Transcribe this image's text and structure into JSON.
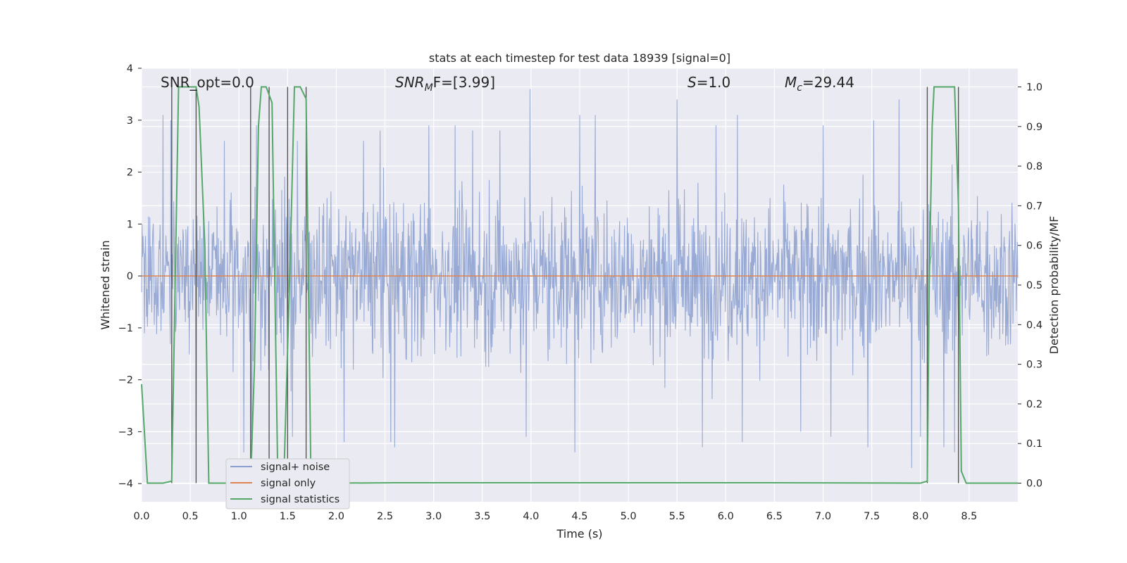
{
  "chart_data": {
    "type": "line",
    "title": "stats at each timestep for test data 18939 [signal=0]",
    "xlabel": "Time (s)",
    "ylabel": "Whitened strain",
    "ylabel_right": "Detection probability/MF",
    "xlim": [
      0.0,
      9.0
    ],
    "ylim": [
      -4.35,
      4.0
    ],
    "ylim_right": [
      -0.047,
      1.047
    ],
    "x_ticks": [
      "0.0",
      "0.5",
      "1.0",
      "1.5",
      "2.0",
      "2.5",
      "3.0",
      "3.5",
      "4.0",
      "4.5",
      "5.0",
      "5.5",
      "6.0",
      "6.5",
      "7.0",
      "7.5",
      "8.0",
      "8.5"
    ],
    "y_ticks": [
      "4",
      "3",
      "2",
      "1",
      "0",
      "−1",
      "−2",
      "−3",
      "−4"
    ],
    "y_ticks_right": [
      "1.0",
      "0.9",
      "0.8",
      "0.7",
      "0.6",
      "0.5",
      "0.4",
      "0.3",
      "0.2",
      "0.1",
      "0.0"
    ],
    "grid": true,
    "legend_position": "lower-left",
    "annotations": {
      "snr_opt": "SNR_opt=0.0",
      "snr_mf_prefix": "SNR",
      "snr_mf_sub": "M",
      "snr_mf_suffix": "F=[3.99]",
      "s_var": "S",
      "s_value": "=1.0",
      "mc_var": "M",
      "mc_sub": "c",
      "mc_value": "=29.44"
    },
    "series": [
      {
        "name": "signal+ noise",
        "color": "#8a9fcf",
        "description_range": [
          -3.6,
          3.6
        ],
        "peaks": [
          [
            0.22,
            3.1
          ],
          [
            0.3,
            3.0
          ],
          [
            0.85,
            2.6
          ],
          [
            1.18,
            2.9
          ],
          [
            1.6,
            2.6
          ],
          [
            2.28,
            2.6
          ],
          [
            2.45,
            2.8
          ],
          [
            2.95,
            2.9
          ],
          [
            3.22,
            2.9
          ],
          [
            3.4,
            2.8
          ],
          [
            3.68,
            2.8
          ],
          [
            3.99,
            3.6
          ],
          [
            4.5,
            3.1
          ],
          [
            4.66,
            3.1
          ],
          [
            5.5,
            3.4
          ],
          [
            5.9,
            2.9
          ],
          [
            6.12,
            3.1
          ],
          [
            7.0,
            2.9
          ],
          [
            7.52,
            3.0
          ],
          [
            7.78,
            3.4
          ],
          [
            8.0,
            3.0
          ]
        ],
        "troughs": [
          [
            0.56,
            -3.3
          ],
          [
            1.05,
            -3.4
          ],
          [
            1.13,
            -3.2
          ],
          [
            1.55,
            -3.1
          ],
          [
            2.08,
            -3.2
          ],
          [
            2.56,
            -3.2
          ],
          [
            2.6,
            -3.3
          ],
          [
            3.95,
            -3.1
          ],
          [
            4.45,
            -3.4
          ],
          [
            5.76,
            -3.3
          ],
          [
            6.17,
            -3.2
          ],
          [
            6.77,
            -3.0
          ],
          [
            7.08,
            -3.1
          ],
          [
            7.46,
            -3.3
          ],
          [
            7.91,
            -3.7
          ],
          [
            8.0,
            -3.1
          ],
          [
            8.24,
            -3.3
          ],
          [
            8.35,
            -3.4
          ]
        ]
      },
      {
        "name": "signal only",
        "color": "#dd8452",
        "x": [
          0.0,
          9.0
        ],
        "y": [
          0.0,
          0.0
        ]
      },
      {
        "name": "signal statistics",
        "color": "#55a868",
        "axis": "right",
        "x": [
          0.0,
          0.06,
          0.22,
          0.31,
          0.38,
          0.56,
          0.59,
          0.65,
          0.69,
          0.72,
          1.12,
          1.16,
          1.2,
          1.23,
          1.28,
          1.34,
          1.4,
          1.46,
          1.53,
          1.57,
          1.63,
          1.69,
          1.74,
          1.83,
          2.0,
          2.6,
          6.45,
          8.0,
          8.07,
          8.09,
          8.12,
          8.14,
          8.18,
          8.35,
          8.39,
          8.42,
          8.47,
          8.5,
          9.0
        ],
        "y": [
          0.25,
          0.0,
          0.0,
          0.005,
          1.0,
          1.0,
          0.95,
          0.6,
          0.0,
          0.0,
          0.0,
          0.3,
          0.9,
          1.0,
          1.0,
          0.96,
          0.0,
          0.0,
          0.6,
          1.0,
          1.0,
          0.97,
          0.0,
          0.0,
          0.0,
          0.001,
          0.001,
          0.0,
          0.005,
          0.5,
          0.9,
          1.0,
          1.0,
          1.0,
          0.7,
          0.03,
          0.0,
          0.0,
          0.0
        ]
      }
    ],
    "vertical_markers_x": [
      0.31,
      0.56,
      1.12,
      1.31,
      1.5,
      1.69,
      8.07,
      8.39
    ],
    "vertical_markers_color": "#4d4d4d"
  }
}
